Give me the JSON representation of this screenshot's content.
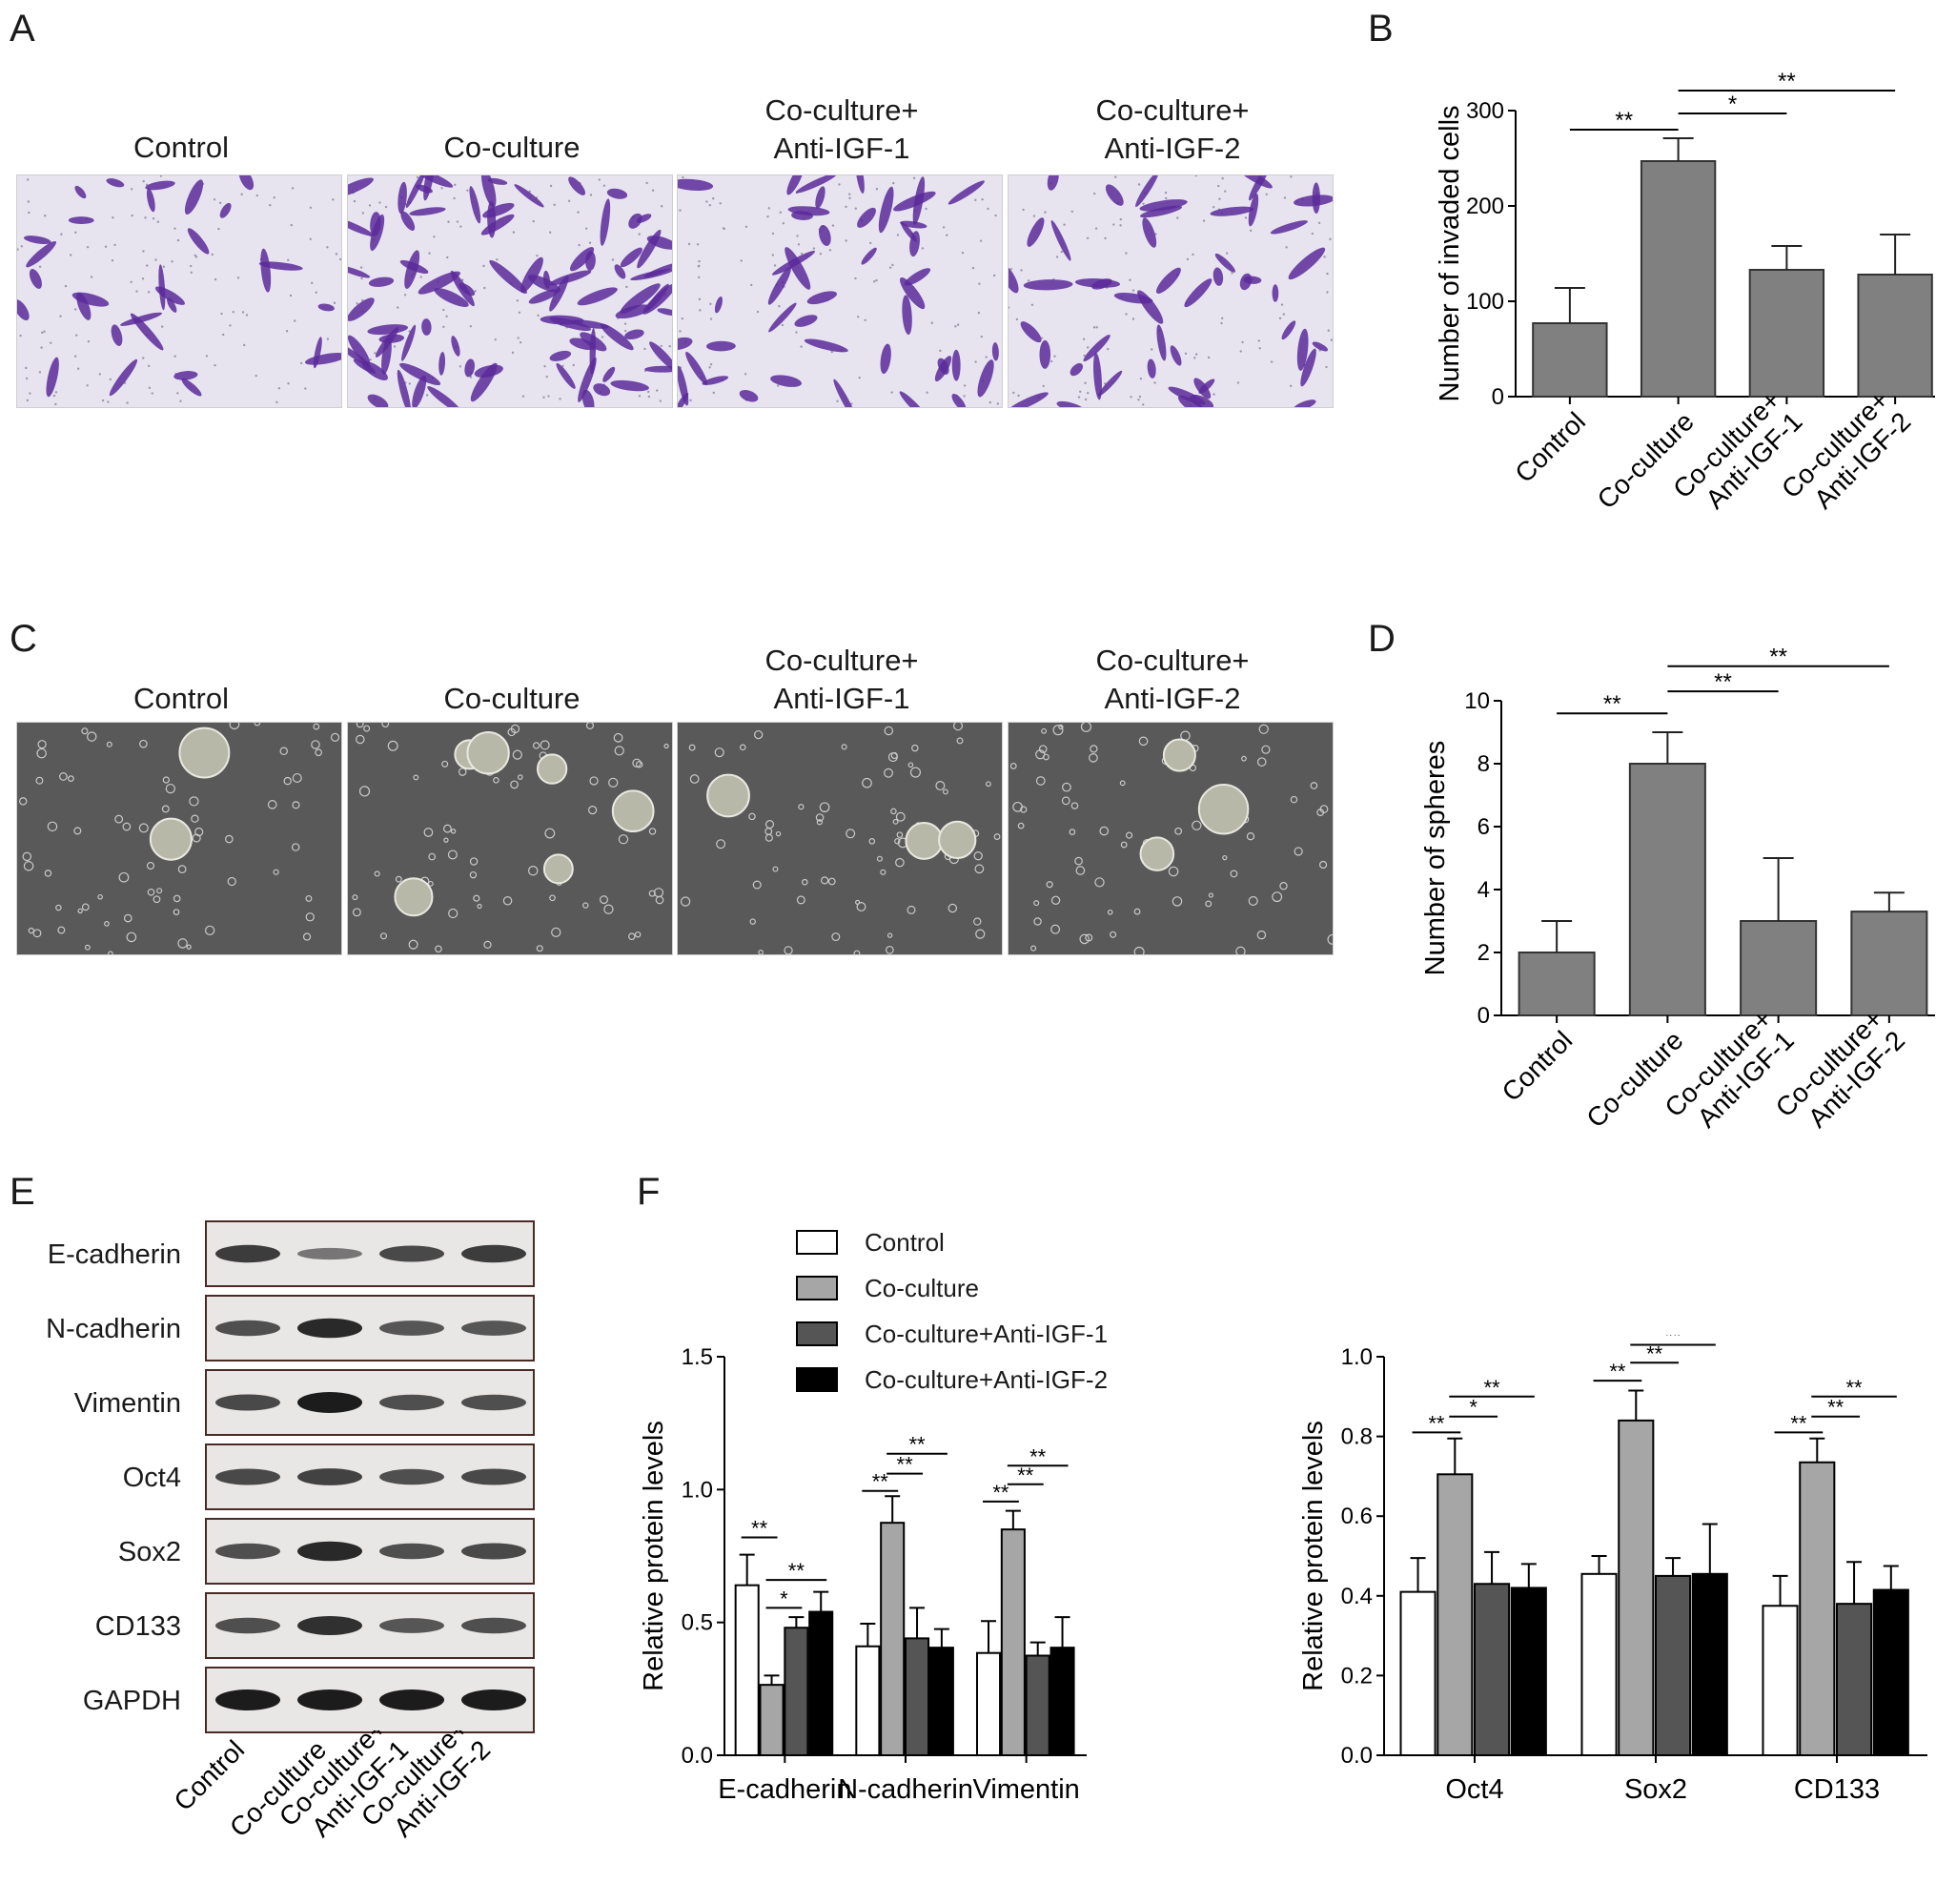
{
  "panel_letters": {
    "a": "A",
    "b": "B",
    "c": "C",
    "d": "D",
    "e": "E",
    "f": "F"
  },
  "image_panels": [
    {
      "line1": "Control",
      "line2": ""
    },
    {
      "line1": "Co-culture",
      "line2": ""
    },
    {
      "line1": "Co-culture+",
      "line2": "Anti-IGF-1"
    },
    {
      "line1": "Co-culture+",
      "line2": "Anti-IGF-2"
    }
  ],
  "colors": {
    "bar_gray": "#808080",
    "invasion_cell": "#5b2a9a",
    "sphere_bg": "#595959"
  },
  "chart_data": [
    {
      "id": "B",
      "type": "bar",
      "ylabel": "Number of invaded cells",
      "categories": [
        "Control",
        "Co-culture",
        "Co-culture+\nAnti-IGF-1",
        "Co-culture+\nAnti-IGF-2"
      ],
      "values": [
        77,
        247,
        133,
        128
      ],
      "errors": [
        37,
        24,
        25,
        42
      ],
      "ylim": [
        0,
        300
      ],
      "yticks": [
        0,
        100,
        200,
        300
      ],
      "significance": [
        {
          "from": 0,
          "to": 1,
          "label": "**",
          "level": 280
        },
        {
          "from": 1,
          "to": 2,
          "label": "*",
          "level": 297
        },
        {
          "from": 1,
          "to": 3,
          "label": "**",
          "level": 321
        }
      ]
    },
    {
      "id": "D",
      "type": "bar",
      "ylabel": "Number of spheres",
      "categories": [
        "Control",
        "Co-culture",
        "Co-culture+\nAnti-IGF-1",
        "Co-culture+\nAnti-IGF-2"
      ],
      "values": [
        2,
        8,
        3,
        3.3
      ],
      "errors": [
        1,
        1,
        2,
        0.6
      ],
      "ylim": [
        0,
        10
      ],
      "yticks": [
        0,
        2,
        4,
        6,
        8,
        10
      ],
      "significance": [
        {
          "from": 0,
          "to": 1,
          "label": "**",
          "level": 9.6
        },
        {
          "from": 1,
          "to": 2,
          "label": "**",
          "level": 10.3
        },
        {
          "from": 1,
          "to": 3,
          "label": "**",
          "level": 11.1
        }
      ]
    },
    {
      "id": "F-left",
      "type": "bar",
      "ylabel": "Relative protein levels",
      "categories": [
        "E-cadherin",
        "N-cadherin",
        "Vimentin"
      ],
      "series": [
        {
          "name": "Control",
          "color": "#ffffff",
          "values": [
            0.64,
            0.41,
            0.385
          ],
          "errors": [
            0.115,
            0.085,
            0.12
          ]
        },
        {
          "name": "Co-culture",
          "color": "#a6a6a6",
          "values": [
            0.265,
            0.875,
            0.85
          ],
          "errors": [
            0.035,
            0.1,
            0.07
          ]
        },
        {
          "name": "Co-culture+Anti-IGF-1",
          "color": "#555555",
          "values": [
            0.48,
            0.44,
            0.375
          ],
          "errors": [
            0.04,
            0.115,
            0.05
          ]
        },
        {
          "name": "Co-culture+Anti-IGF-2",
          "color": "#000000",
          "values": [
            0.54,
            0.405,
            0.405
          ],
          "errors": [
            0.075,
            0.07,
            0.115
          ]
        }
      ],
      "ylim": [
        0,
        1.5
      ],
      "yticks": [
        "0.0",
        "0.5",
        "1.0",
        "1.5"
      ],
      "significance": [
        {
          "group": 0,
          "from": 0,
          "to": 1,
          "label": "**",
          "level": 0.82
        },
        {
          "group": 0,
          "from": 1,
          "to": 2,
          "label": "*",
          "level": 0.555
        },
        {
          "group": 0,
          "from": 1,
          "to": 3,
          "label": "**",
          "level": 0.66
        },
        {
          "group": 1,
          "from": 0,
          "to": 1,
          "label": "**",
          "level": 0.995
        },
        {
          "group": 1,
          "from": 1,
          "to": 2,
          "label": "**",
          "level": 1.06
        },
        {
          "group": 1,
          "from": 1,
          "to": 3,
          "label": "**",
          "level": 1.135
        },
        {
          "group": 2,
          "from": 0,
          "to": 1,
          "label": "**",
          "level": 0.955
        },
        {
          "group": 2,
          "from": 1,
          "to": 2,
          "label": "**",
          "level": 1.02
        },
        {
          "group": 2,
          "from": 1,
          "to": 3,
          "label": "**",
          "level": 1.09
        }
      ]
    },
    {
      "id": "F-right",
      "type": "bar",
      "ylabel": "Relative protein levels",
      "categories": [
        "Oct4",
        "Sox2",
        "CD133"
      ],
      "series": [
        {
          "name": "Control",
          "color": "#ffffff",
          "values": [
            0.41,
            0.455,
            0.375
          ],
          "errors": [
            0.085,
            0.045,
            0.075
          ]
        },
        {
          "name": "Co-culture",
          "color": "#a6a6a6",
          "values": [
            0.705,
            0.84,
            0.735
          ],
          "errors": [
            0.09,
            0.075,
            0.06
          ]
        },
        {
          "name": "Co-culture+Anti-IGF-1",
          "color": "#555555",
          "values": [
            0.43,
            0.45,
            0.38
          ],
          "errors": [
            0.08,
            0.045,
            0.105
          ]
        },
        {
          "name": "Co-culture+Anti-IGF-2",
          "color": "#000000",
          "values": [
            0.42,
            0.455,
            0.415
          ],
          "errors": [
            0.06,
            0.125,
            0.06
          ]
        }
      ],
      "ylim": [
        0,
        1.0
      ],
      "yticks": [
        "0.0",
        "0.2",
        "0.4",
        "0.6",
        "0.8",
        "1.0"
      ],
      "significance": [
        {
          "group": 0,
          "from": 0,
          "to": 1,
          "label": "**",
          "level": 0.81
        },
        {
          "group": 0,
          "from": 1,
          "to": 2,
          "label": "*",
          "level": 0.85
        },
        {
          "group": 0,
          "from": 1,
          "to": 3,
          "label": "**",
          "level": 0.9
        },
        {
          "group": 1,
          "from": 0,
          "to": 1,
          "label": "**",
          "level": 0.94
        },
        {
          "group": 1,
          "from": 1,
          "to": 2,
          "label": "**",
          "level": 0.985
        },
        {
          "group": 1,
          "from": 1,
          "to": 3,
          "label": "**",
          "level": 1.03
        },
        {
          "group": 2,
          "from": 0,
          "to": 1,
          "label": "**",
          "level": 0.81
        },
        {
          "group": 2,
          "from": 1,
          "to": 2,
          "label": "**",
          "level": 0.85
        },
        {
          "group": 2,
          "from": 1,
          "to": 3,
          "label": "**",
          "level": 0.9
        }
      ]
    }
  ],
  "legend": [
    "Control",
    "Co-culture",
    "Co-culture+Anti-IGF-1",
    "Co-culture+Anti-IGF-2"
  ],
  "western_blot": {
    "proteins": [
      "E-cadherin",
      "N-cadherin",
      "Vimentin",
      "Oct4",
      "Sox2",
      "CD133",
      "GAPDH"
    ],
    "lanes": [
      "Control",
      "Co-culture",
      "Co-culture+\nAnti-IGF-1",
      "Co-culture+\nAnti-IGF-2"
    ],
    "band_intensity": [
      [
        0.75,
        0.3,
        0.65,
        0.75
      ],
      [
        0.6,
        0.9,
        0.55,
        0.55
      ],
      [
        0.65,
        1.0,
        0.6,
        0.6
      ],
      [
        0.65,
        0.7,
        0.6,
        0.65
      ],
      [
        0.6,
        0.9,
        0.6,
        0.65
      ],
      [
        0.6,
        0.85,
        0.55,
        0.6
      ],
      [
        1.0,
        1.0,
        1.0,
        1.0
      ]
    ]
  }
}
